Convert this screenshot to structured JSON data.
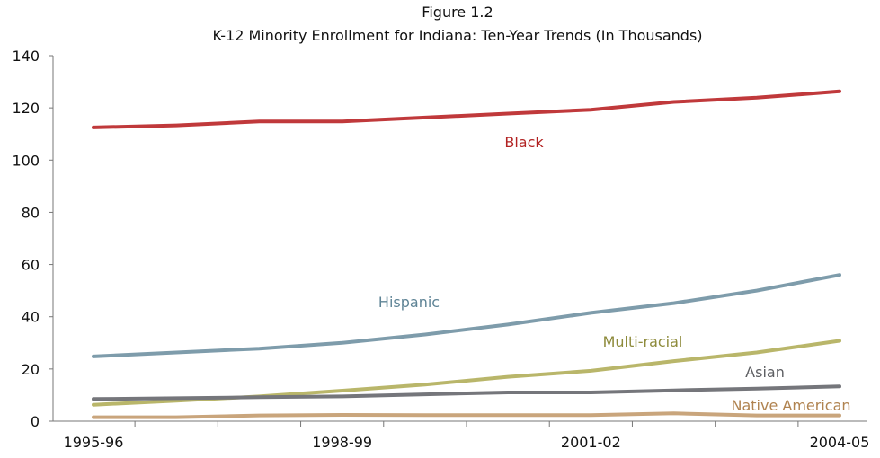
{
  "chart_data": {
    "type": "line",
    "title": "Figure 1.2",
    "subtitle": "K-12 Minority Enrollment for Indiana: Ten-Year Trends (In Thousands)",
    "xlabel": "",
    "ylabel": "",
    "ylim": [
      0,
      140
    ],
    "yticks": [
      0,
      20,
      40,
      60,
      80,
      100,
      120,
      140
    ],
    "x": [
      "1995-96",
      "1996-97",
      "1997-98",
      "1998-99",
      "1999-00",
      "2000-01",
      "2001-02",
      "2002-03",
      "2003-04",
      "2004-05"
    ],
    "xtick_labels": [
      "1995-96",
      "1998-99",
      "2001-02",
      "2004-05"
    ],
    "grid": false,
    "legend": "inline labels",
    "series": [
      {
        "name": "Black",
        "color": "#c0393b",
        "label_color": "#b22222",
        "values": [
          112.5,
          113.3,
          114.8,
          114.8,
          116.3,
          117.8,
          119.3,
          122.3,
          123.9,
          126.3
        ]
      },
      {
        "name": "Hispanic",
        "color": "#7e9cab",
        "label_color": "#5f8496",
        "values": [
          24.8,
          26.3,
          27.8,
          30.0,
          33.2,
          37.0,
          41.5,
          45.2,
          50.0,
          56.0
        ]
      },
      {
        "name": "Multi-racial",
        "color": "#b9b66a",
        "label_color": "#8e8b3c",
        "values": [
          6.3,
          7.8,
          9.5,
          11.7,
          14.0,
          17.0,
          19.3,
          23.0,
          26.3,
          30.8
        ]
      },
      {
        "name": "Asian",
        "color": "#75767b",
        "label_color": "#5e5f63",
        "values": [
          8.5,
          8.8,
          9.2,
          9.5,
          10.3,
          11.0,
          11.0,
          11.8,
          12.5,
          13.3
        ]
      },
      {
        "name": "Native American",
        "color": "#c9a57c",
        "label_color": "#b08350",
        "values": [
          1.5,
          1.5,
          2.2,
          2.4,
          2.3,
          2.3,
          2.3,
          3.0,
          2.2,
          2.2
        ]
      }
    ]
  }
}
